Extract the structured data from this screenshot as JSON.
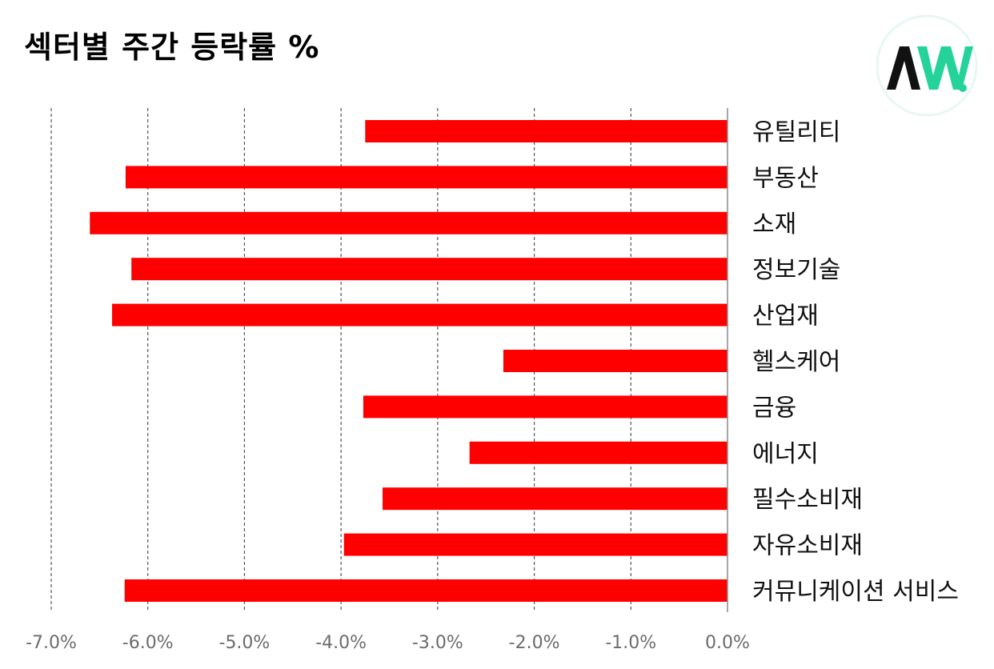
{
  "header": {
    "title": "섹터별 주간 등락률 %"
  },
  "logo": {
    "icon": "aw-logo-icon",
    "colors": {
      "ring": "#e9f7f1",
      "dark": "#111111",
      "green": "#25d39a"
    }
  },
  "chart_data": {
    "type": "bar",
    "orientation": "horizontal",
    "title": "섹터별 주간 등락률 %",
    "xlabel": "",
    "ylabel": "",
    "xlim": [
      -7.0,
      0.0
    ],
    "xticks": [
      -7.0,
      -6.0,
      -5.0,
      -4.0,
      -3.0,
      -2.0,
      -1.0,
      0.0
    ],
    "xtick_labels": [
      "-7.0%",
      "-6.0%",
      "-5.0%",
      "-4.0%",
      "-3.0%",
      "-2.0%",
      "-1.0%",
      "0.0%"
    ],
    "grid": "vertical dashed",
    "bar_color": "#ff0000",
    "categories": [
      "유틸리티",
      "부동산",
      "소재",
      "정보기술",
      "산업재",
      "헬스케어",
      "금융",
      "에너지",
      "필수소비재",
      "자유소비재",
      "커뮤니케이션 서비스"
    ],
    "values": [
      -3.75,
      -6.23,
      -6.6,
      -6.17,
      -6.37,
      -2.32,
      -3.77,
      -2.67,
      -3.57,
      -3.97,
      -6.24
    ]
  }
}
